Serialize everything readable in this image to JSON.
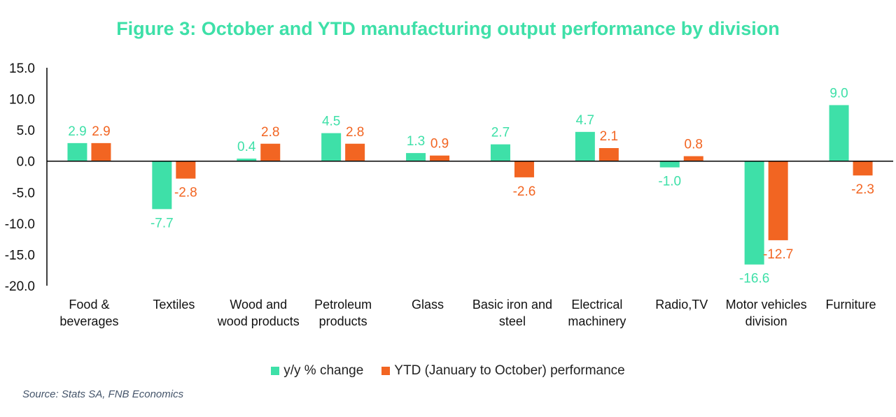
{
  "title": "Figure 3: October and YTD manufacturing output performance by division",
  "source": "Source: Stats SA, FNB Economics",
  "colors": {
    "series1": "#3ee0a8",
    "series2": "#f26522",
    "axis": "#000000"
  },
  "chart_data": {
    "type": "bar",
    "categories": [
      [
        "Food &",
        "beverages"
      ],
      [
        "Textiles"
      ],
      [
        "Wood and",
        "wood products"
      ],
      [
        "Petroleum",
        "products"
      ],
      [
        "Glass"
      ],
      [
        "Basic iron and",
        "steel"
      ],
      [
        "Electrical",
        "machinery"
      ],
      [
        "Radio,TV"
      ],
      [
        "Motor vehicles",
        "division"
      ],
      [
        "Furniture"
      ]
    ],
    "series": [
      {
        "name": "y/y % change",
        "values": [
          2.9,
          -7.7,
          0.4,
          4.5,
          1.3,
          2.7,
          4.7,
          -1.0,
          -16.6,
          9.0
        ]
      },
      {
        "name": "YTD (January to October) performance",
        "values": [
          2.9,
          -2.8,
          2.8,
          2.8,
          0.9,
          -2.6,
          2.1,
          0.8,
          -12.7,
          -2.3
        ]
      }
    ],
    "ylim": [
      -20,
      15
    ],
    "yticks": [
      "15.0",
      "10.0",
      "5.0",
      "0.0",
      "-5.0",
      "-10.0",
      "-15.0",
      "-20.0"
    ],
    "legend_position": "bottom",
    "grid": false
  }
}
